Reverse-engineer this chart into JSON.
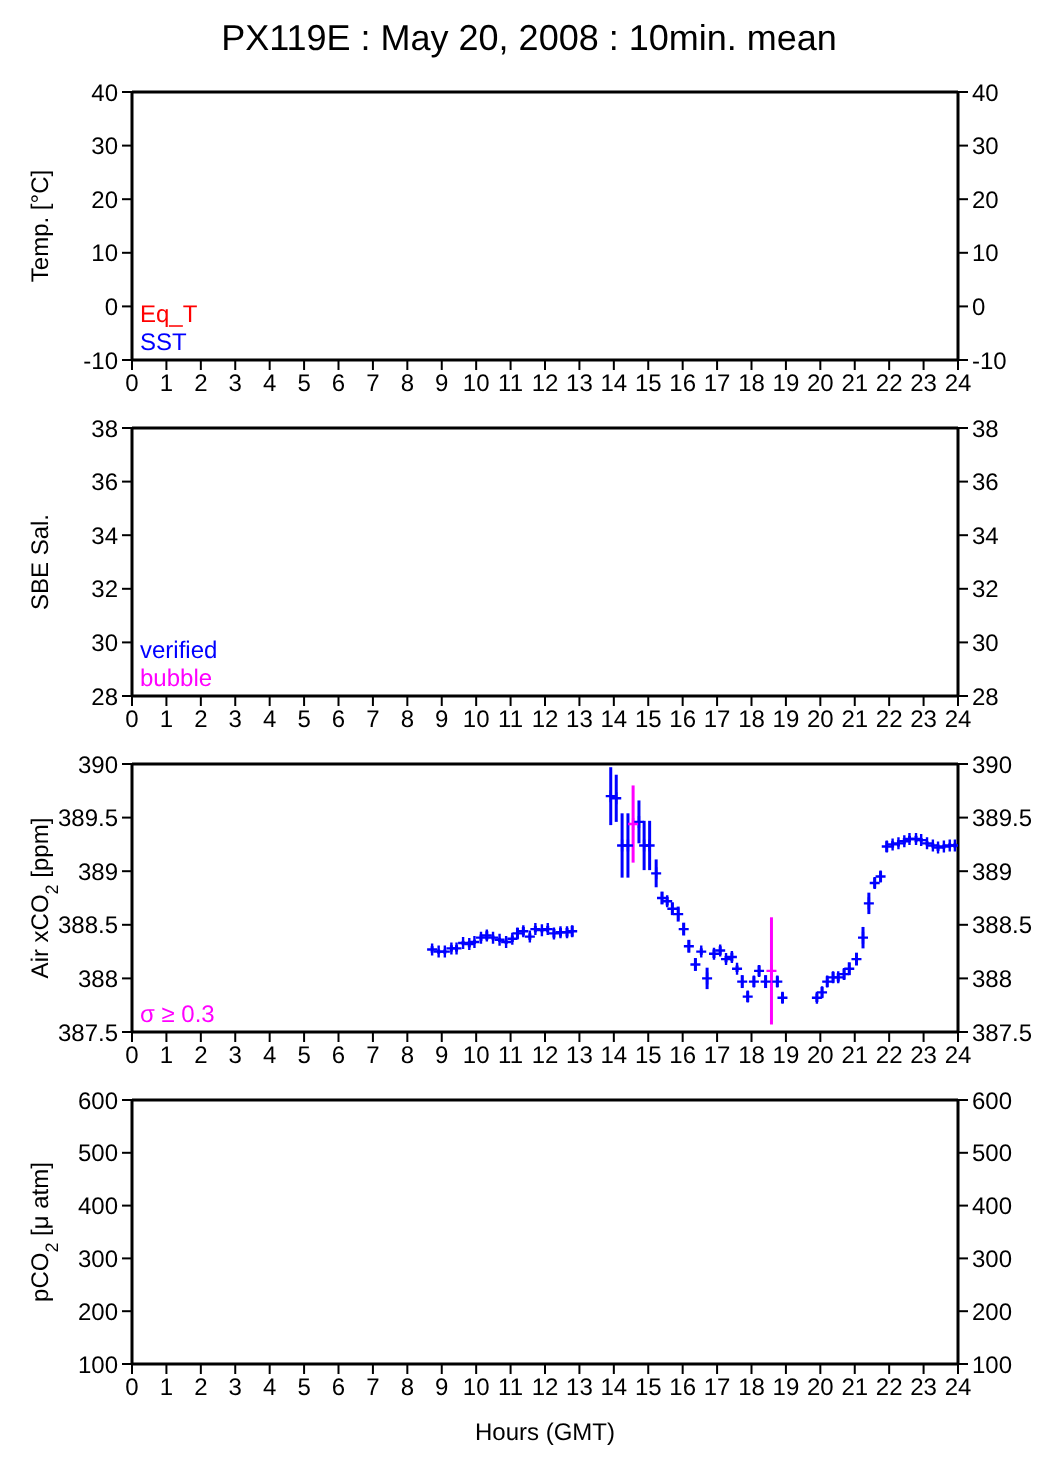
{
  "chart_data": [
    {
      "type": "scatter",
      "title": "PX119E : May 20, 2008 : 10min. mean",
      "ylabel": "Temp. [°C]",
      "xlim": [
        0,
        24
      ],
      "xticks": [
        0,
        1,
        2,
        3,
        4,
        5,
        6,
        7,
        8,
        9,
        10,
        11,
        12,
        13,
        14,
        15,
        16,
        17,
        18,
        19,
        20,
        21,
        22,
        23,
        24
      ],
      "ylim": [
        -10,
        40
      ],
      "yticks": [
        -10,
        0,
        10,
        20,
        30,
        40
      ],
      "y2lim": [
        -10,
        40
      ],
      "y2ticks": [
        -10,
        0,
        10,
        20,
        30,
        40
      ],
      "series": [
        {
          "name": "Eq_T",
          "color": "#ff0000",
          "x": [
            null
          ],
          "values": [
            null
          ]
        },
        {
          "name": "SST",
          "color": "#0000ff",
          "x": [
            null
          ],
          "values": [
            null
          ]
        }
      ]
    },
    {
      "type": "scatter",
      "ylabel": "SBE Sal.",
      "xlim": [
        0,
        24
      ],
      "xticks": [
        0,
        1,
        2,
        3,
        4,
        5,
        6,
        7,
        8,
        9,
        10,
        11,
        12,
        13,
        14,
        15,
        16,
        17,
        18,
        19,
        20,
        21,
        22,
        23,
        24
      ],
      "ylim": [
        28,
        38
      ],
      "yticks": [
        28,
        30,
        32,
        34,
        36,
        38
      ],
      "y2lim": [
        28,
        38
      ],
      "y2ticks": [
        28,
        30,
        32,
        34,
        36,
        38
      ],
      "series": [
        {
          "name": "verified",
          "color": "#0000ff",
          "x": [
            null
          ],
          "values": [
            null
          ]
        },
        {
          "name": "bubble",
          "color": "#ff00ff",
          "x": [
            null
          ],
          "values": [
            null
          ]
        }
      ]
    },
    {
      "type": "scatter",
      "ylabel": "Air xCO$_{2}$ [ppm]",
      "xlim": [
        0,
        24
      ],
      "xticks": [
        0,
        1,
        2,
        3,
        4,
        5,
        6,
        7,
        8,
        9,
        10,
        11,
        12,
        13,
        14,
        15,
        16,
        17,
        18,
        19,
        20,
        21,
        22,
        23,
        24
      ],
      "ylim": [
        387.5,
        390
      ],
      "yticks": [
        387.5,
        388,
        388.5,
        389,
        389.5,
        390
      ],
      "y2lim": [
        387.5,
        390
      ],
      "y2ticks": [
        387.5,
        388,
        388.5,
        389,
        389.5,
        390
      ],
      "marker": "cross",
      "series": [
        {
          "color": "#0000ff",
          "x": [
            8.72,
            8.91,
            9.09,
            9.28,
            9.43,
            9.62,
            9.8,
            9.95,
            10.14,
            10.31,
            10.49,
            10.68,
            10.87,
            11.05,
            11.2,
            11.37,
            11.56,
            11.72,
            11.91,
            12.08,
            12.26,
            12.45,
            12.64,
            12.79,
            13.91,
            14.07,
            14.24,
            14.41,
            14.73,
            14.88,
            15.04,
            15.23,
            15.4,
            15.55,
            15.7,
            15.87,
            16.03,
            16.18,
            16.37,
            16.54,
            16.71,
            16.91,
            17.09,
            17.26,
            17.43,
            17.58,
            17.73,
            17.89,
            18.07,
            18.22,
            18.41,
            18.75,
            18.9,
            19.9,
            20.05,
            20.2,
            20.37,
            20.52,
            20.69,
            20.84,
            21.05,
            21.24,
            21.41,
            21.58,
            21.75,
            21.93,
            22.1,
            22.27,
            22.44,
            22.59,
            22.78,
            22.93,
            23.1,
            23.27,
            23.42,
            23.59,
            23.76,
            23.91
          ],
          "values": [
            388.27,
            388.25,
            388.25,
            388.28,
            388.28,
            388.33,
            388.32,
            388.34,
            388.38,
            388.4,
            388.38,
            388.36,
            388.34,
            388.37,
            388.42,
            388.44,
            388.39,
            388.46,
            388.45,
            388.46,
            388.42,
            388.43,
            388.43,
            388.44,
            389.7,
            389.68,
            389.24,
            389.24,
            389.46,
            389.24,
            389.24,
            388.98,
            388.75,
            388.72,
            388.65,
            388.6,
            388.46,
            388.3,
            388.13,
            388.25,
            388.0,
            388.23,
            388.26,
            388.18,
            388.2,
            388.09,
            387.97,
            387.83,
            387.97,
            388.07,
            387.97,
            387.97,
            387.82,
            387.82,
            387.87,
            387.97,
            388.01,
            388.01,
            388.04,
            388.09,
            388.18,
            388.38,
            388.7,
            388.89,
            388.95,
            389.23,
            389.25,
            389.26,
            389.28,
            389.3,
            389.3,
            389.29,
            389.26,
            389.24,
            389.22,
            389.23,
            389.24,
            389.24
          ],
          "errors": [
            0.03,
            0.02,
            0.02,
            0.03,
            0.03,
            0.02,
            0.03,
            0.02,
            0.03,
            0.04,
            0.02,
            0.02,
            0.02,
            0.03,
            0.05,
            0.04,
            0.03,
            0.03,
            0.02,
            0.03,
            0.04,
            0.04,
            0.04,
            0.05,
            0.27,
            0.22,
            0.3,
            0.3,
            0.2,
            0.23,
            0.23,
            0.13,
            0.06,
            0.04,
            0.06,
            0.07,
            0.06,
            0.06,
            0.06,
            0.03,
            0.1,
            0.04,
            0.04,
            0.03,
            0.04,
            0.03,
            0.06,
            0.05,
            0.05,
            0.05,
            0.06,
            0.05,
            0.05,
            0.04,
            0.05,
            0.05,
            0.05,
            0.04,
            0.05,
            0.06,
            0.06,
            0.1,
            0.1,
            0.05,
            0.05,
            0.05,
            0.03,
            0.03,
            0.03,
            0.03,
            0.03,
            0.02,
            0.02,
            0.02,
            0.03,
            0.02,
            0.02,
            0.02
          ]
        },
        {
          "name": "σ ≥ 0.3",
          "color": "#ff00ff",
          "x": [
            14.56,
            18.58
          ],
          "values": [
            389.44,
            388.07
          ],
          "errors": [
            0.36,
            0.5
          ]
        }
      ]
    },
    {
      "type": "scatter",
      "ylabel": "pCO$_{2}$ [μ atm]",
      "xlabel": "Hours (GMT)",
      "xlim": [
        0,
        24
      ],
      "xticks": [
        0,
        1,
        2,
        3,
        4,
        5,
        6,
        7,
        8,
        9,
        10,
        11,
        12,
        13,
        14,
        15,
        16,
        17,
        18,
        19,
        20,
        21,
        22,
        23,
        24
      ],
      "ylim": [
        100,
        600
      ],
      "yticks": [
        100,
        200,
        300,
        400,
        500,
        600
      ],
      "y2lim": [
        100,
        600
      ],
      "y2ticks": [
        100,
        200,
        300,
        400,
        500,
        600
      ]
    }
  ]
}
